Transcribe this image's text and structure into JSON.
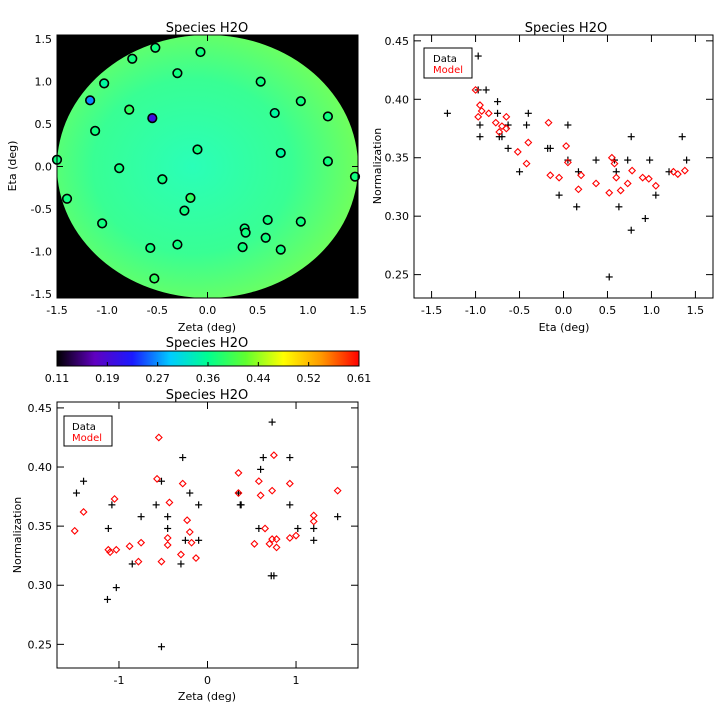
{
  "chart_data": [
    {
      "type": "scatter",
      "title": "Species H2O",
      "xlabel": "Zeta (deg)",
      "ylabel": "Eta (deg)",
      "xlim": [
        -1.5,
        1.5
      ],
      "ylim": [
        -1.55,
        1.55
      ],
      "xticks": [
        "-1.5",
        "-1.0",
        "-0.5",
        "0.0",
        "0.5",
        "1.0",
        "1.5"
      ],
      "yticks": [
        "-1.5",
        "-1.0",
        "-0.5",
        "0.0",
        "0.5",
        "1.0",
        "1.5"
      ],
      "background": "color map of Normalization inside a circle of radius 1.5 deg (green field ~0.38-0.40)",
      "colors": {
        "outside": "#000000",
        "field": "#4dff8a",
        "point_outline": "#000000"
      },
      "points": [
        {
          "zeta": -0.52,
          "eta": 1.4,
          "value": 0.38
        },
        {
          "zeta": -0.07,
          "eta": 1.35,
          "value": 0.38
        },
        {
          "zeta": -0.75,
          "eta": 1.27,
          "value": 0.38
        },
        {
          "zeta": -0.3,
          "eta": 1.1,
          "value": 0.38
        },
        {
          "zeta": 0.53,
          "eta": 1.0,
          "value": 0.38
        },
        {
          "zeta": -1.03,
          "eta": 0.98,
          "value": 0.36
        },
        {
          "zeta": 0.93,
          "eta": 0.77,
          "value": 0.38
        },
        {
          "zeta": -1.17,
          "eta": 0.78,
          "value": 0.27
        },
        {
          "zeta": -0.78,
          "eta": 0.67,
          "value": 0.4
        },
        {
          "zeta": 0.67,
          "eta": 0.63,
          "value": 0.36
        },
        {
          "zeta": 1.2,
          "eta": 0.59,
          "value": 0.38
        },
        {
          "zeta": -0.55,
          "eta": 0.57,
          "value": 0.19
        },
        {
          "zeta": -1.12,
          "eta": 0.42,
          "value": 0.38
        },
        {
          "zeta": -0.1,
          "eta": 0.2,
          "value": 0.38
        },
        {
          "zeta": 0.73,
          "eta": 0.16,
          "value": 0.36
        },
        {
          "zeta": -1.5,
          "eta": 0.08,
          "value": 0.38
        },
        {
          "zeta": 1.2,
          "eta": 0.06,
          "value": 0.38
        },
        {
          "zeta": -0.88,
          "eta": -0.02,
          "value": 0.38
        },
        {
          "zeta": -0.45,
          "eta": -0.15,
          "value": 0.38
        },
        {
          "zeta": 1.47,
          "eta": -0.12,
          "value": 0.38
        },
        {
          "zeta": -1.4,
          "eta": -0.38,
          "value": 0.38
        },
        {
          "zeta": -0.17,
          "eta": -0.37,
          "value": 0.4
        },
        {
          "zeta": -0.23,
          "eta": -0.52,
          "value": 0.38
        },
        {
          "zeta": -1.05,
          "eta": -0.67,
          "value": 0.38
        },
        {
          "zeta": 0.6,
          "eta": -0.63,
          "value": 0.38
        },
        {
          "zeta": 0.93,
          "eta": -0.65,
          "value": 0.38
        },
        {
          "zeta": 0.37,
          "eta": -0.73,
          "value": 0.38
        },
        {
          "zeta": 0.38,
          "eta": -0.78,
          "value": 0.38
        },
        {
          "zeta": 0.58,
          "eta": -0.84,
          "value": 0.38
        },
        {
          "zeta": -0.3,
          "eta": -0.92,
          "value": 0.38
        },
        {
          "zeta": 0.35,
          "eta": -0.95,
          "value": 0.38
        },
        {
          "zeta": -0.57,
          "eta": -0.96,
          "value": 0.38
        },
        {
          "zeta": 0.73,
          "eta": -0.98,
          "value": 0.38
        },
        {
          "zeta": -0.53,
          "eta": -1.32,
          "value": 0.4
        }
      ]
    },
    {
      "type": "scatter",
      "title": "Species H2O",
      "xlabel": "Eta (deg)",
      "ylabel": "Normalization",
      "xlim": [
        -1.7,
        1.7
      ],
      "ylim": [
        0.23,
        0.455
      ],
      "xticks": [
        "-1.5",
        "-1.0",
        "-0.5",
        "0.0",
        "0.5",
        "1.0",
        "1.5"
      ],
      "yticks": [
        "0.25",
        "0.30",
        "0.35",
        "0.40",
        "0.45"
      ],
      "legend": {
        "position": "top-left",
        "entries": [
          {
            "label": "Data",
            "color": "#000000"
          },
          {
            "label": "Model",
            "color": "#ff0000"
          }
        ]
      },
      "series": [
        {
          "name": "Data",
          "marker": "plus",
          "color": "#000000",
          "points": [
            [
              -1.32,
              0.388
            ],
            [
              -0.97,
              0.437
            ],
            [
              -0.97,
              0.408
            ],
            [
              -0.95,
              0.368
            ],
            [
              -0.95,
              0.378
            ],
            [
              -0.88,
              0.408
            ],
            [
              -0.75,
              0.398
            ],
            [
              -0.75,
              0.388
            ],
            [
              -0.7,
              0.368
            ],
            [
              -0.73,
              0.368
            ],
            [
              -0.63,
              0.358
            ],
            [
              -0.63,
              0.378
            ],
            [
              -0.42,
              0.378
            ],
            [
              -0.4,
              0.388
            ],
            [
              -0.5,
              0.338
            ],
            [
              -0.18,
              0.358
            ],
            [
              -0.15,
              0.358
            ],
            [
              -0.05,
              0.318
            ],
            [
              0.05,
              0.378
            ],
            [
              0.05,
              0.348
            ],
            [
              0.15,
              0.308
            ],
            [
              0.17,
              0.338
            ],
            [
              0.37,
              0.348
            ],
            [
              0.52,
              0.248
            ],
            [
              0.58,
              0.348
            ],
            [
              0.6,
              0.338
            ],
            [
              0.63,
              0.308
            ],
            [
              0.73,
              0.348
            ],
            [
              0.77,
              0.368
            ],
            [
              0.77,
              0.288
            ],
            [
              0.93,
              0.298
            ],
            [
              0.98,
              0.348
            ],
            [
              1.05,
              0.318
            ],
            [
              1.2,
              0.338
            ],
            [
              1.35,
              0.368
            ],
            [
              1.4,
              0.348
            ]
          ]
        },
        {
          "name": "Model",
          "marker": "diamond",
          "color": "#ff0000",
          "points": [
            [
              -1.32,
              0.427
            ],
            [
              -1.0,
              0.408
            ],
            [
              -0.95,
              0.395
            ],
            [
              -0.97,
              0.385
            ],
            [
              -0.93,
              0.39
            ],
            [
              -0.85,
              0.388
            ],
            [
              -0.77,
              0.38
            ],
            [
              -0.73,
              0.372
            ],
            [
              -0.7,
              0.377
            ],
            [
              -0.65,
              0.385
            ],
            [
              -0.65,
              0.375
            ],
            [
              -0.52,
              0.355
            ],
            [
              -0.42,
              0.345
            ],
            [
              -0.4,
              0.363
            ],
            [
              -0.17,
              0.38
            ],
            [
              -0.15,
              0.335
            ],
            [
              -0.05,
              0.333
            ],
            [
              0.03,
              0.36
            ],
            [
              0.05,
              0.346
            ],
            [
              0.17,
              0.323
            ],
            [
              0.2,
              0.335
            ],
            [
              0.37,
              0.328
            ],
            [
              0.52,
              0.32
            ],
            [
              0.55,
              0.35
            ],
            [
              0.58,
              0.345
            ],
            [
              0.6,
              0.333
            ],
            [
              0.65,
              0.322
            ],
            [
              0.73,
              0.328
            ],
            [
              0.78,
              0.339
            ],
            [
              0.9,
              0.333
            ],
            [
              0.97,
              0.332
            ],
            [
              1.05,
              0.326
            ],
            [
              1.25,
              0.338
            ],
            [
              1.3,
              0.336
            ],
            [
              1.38,
              0.339
            ]
          ]
        }
      ]
    },
    {
      "type": "colorbar",
      "title": "Species H2O",
      "min": 0.11,
      "max": 0.61,
      "tick_labels": [
        "0.11",
        "0.19",
        "0.27",
        "0.36",
        "0.44",
        "0.52",
        "0.61"
      ],
      "colors": [
        "#000000",
        "#6000c0",
        "#1a1aff",
        "#00ccff",
        "#00ff90",
        "#60ff30",
        "#ffff00",
        "#ff9900",
        "#ff0000"
      ]
    },
    {
      "type": "scatter",
      "title": "Species H2O",
      "xlabel": "Zeta (deg)",
      "ylabel": "Normalization",
      "xlim": [
        -1.7,
        1.7
      ],
      "ylim": [
        0.23,
        0.455
      ],
      "xticks": [
        "-1",
        "0",
        "1"
      ],
      "yticks": [
        "0.25",
        "0.30",
        "0.35",
        "0.40",
        "0.45"
      ],
      "legend": {
        "position": "top-left",
        "entries": [
          {
            "label": "Data",
            "color": "#000000"
          },
          {
            "label": "Model",
            "color": "#ff0000"
          }
        ]
      },
      "series": [
        {
          "name": "Data",
          "marker": "plus",
          "color": "#000000",
          "points": [
            [
              -1.4,
              0.388
            ],
            [
              -1.48,
              0.378
            ],
            [
              -1.12,
              0.348
            ],
            [
              -1.08,
              0.368
            ],
            [
              -1.13,
              0.288
            ],
            [
              -1.03,
              0.298
            ],
            [
              -0.85,
              0.318
            ],
            [
              -0.75,
              0.358
            ],
            [
              -0.58,
              0.368
            ],
            [
              -0.52,
              0.388
            ],
            [
              -0.52,
              0.248
            ],
            [
              -0.45,
              0.358
            ],
            [
              -0.45,
              0.348
            ],
            [
              -0.3,
              0.318
            ],
            [
              -0.28,
              0.408
            ],
            [
              -0.25,
              0.338
            ],
            [
              -0.2,
              0.378
            ],
            [
              -0.1,
              0.368
            ],
            [
              -0.1,
              0.338
            ],
            [
              0.35,
              0.378
            ],
            [
              0.37,
              0.368
            ],
            [
              0.38,
              0.368
            ],
            [
              0.58,
              0.348
            ],
            [
              0.6,
              0.398
            ],
            [
              0.63,
              0.408
            ],
            [
              0.72,
              0.308
            ],
            [
              0.73,
              0.438
            ],
            [
              0.75,
              0.308
            ],
            [
              0.93,
              0.408
            ],
            [
              0.93,
              0.368
            ],
            [
              1.02,
              0.348
            ],
            [
              1.2,
              0.348
            ],
            [
              1.2,
              0.338
            ],
            [
              1.47,
              0.358
            ]
          ]
        },
        {
          "name": "Model",
          "marker": "diamond",
          "color": "#ff0000",
          "points": [
            [
              -1.5,
              0.346
            ],
            [
              -1.4,
              0.362
            ],
            [
              -1.12,
              0.33
            ],
            [
              -1.1,
              0.328
            ],
            [
              -1.05,
              0.373
            ],
            [
              -1.03,
              0.33
            ],
            [
              -0.88,
              0.333
            ],
            [
              -0.78,
              0.32
            ],
            [
              -0.75,
              0.336
            ],
            [
              -0.57,
              0.39
            ],
            [
              -0.55,
              0.425
            ],
            [
              -0.52,
              0.32
            ],
            [
              -0.45,
              0.34
            ],
            [
              -0.45,
              0.334
            ],
            [
              -0.43,
              0.37
            ],
            [
              -0.3,
              0.326
            ],
            [
              -0.28,
              0.386
            ],
            [
              -0.23,
              0.355
            ],
            [
              -0.2,
              0.345
            ],
            [
              -0.18,
              0.336
            ],
            [
              -0.13,
              0.323
            ],
            [
              0.35,
              0.378
            ],
            [
              0.35,
              0.395
            ],
            [
              0.53,
              0.335
            ],
            [
              0.58,
              0.388
            ],
            [
              0.6,
              0.376
            ],
            [
              0.65,
              0.348
            ],
            [
              0.7,
              0.335
            ],
            [
              0.73,
              0.38
            ],
            [
              0.73,
              0.339
            ],
            [
              0.75,
              0.41
            ],
            [
              0.78,
              0.332
            ],
            [
              0.78,
              0.339
            ],
            [
              0.93,
              0.386
            ],
            [
              0.93,
              0.34
            ],
            [
              1.0,
              0.342
            ],
            [
              1.2,
              0.359
            ],
            [
              1.2,
              0.354
            ],
            [
              1.47,
              0.38
            ]
          ]
        }
      ]
    }
  ]
}
